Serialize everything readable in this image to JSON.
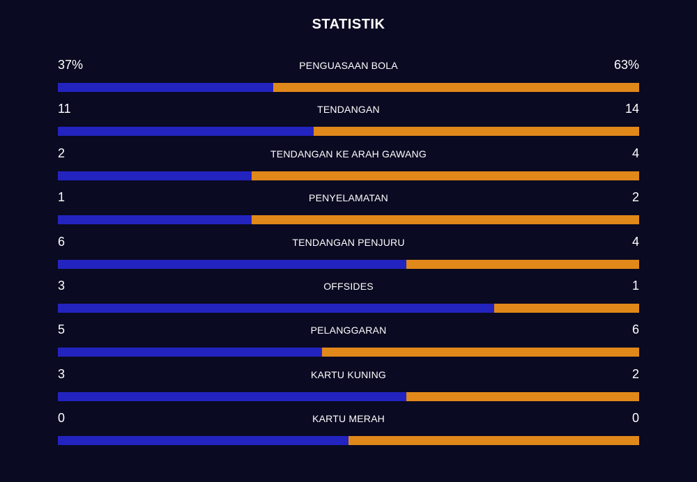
{
  "title": "STATISTIK",
  "colors": {
    "background": "#0a0a22",
    "home": "#2323c0",
    "away": "#e0881a"
  },
  "stats": [
    {
      "label": "PENGUASAAN BOLA",
      "home": "37%",
      "away": "63%",
      "home_share": 0.37
    },
    {
      "label": "TENDANGAN",
      "home": "11",
      "away": "14",
      "home_share": 0.44
    },
    {
      "label": "TENDANGAN KE ARAH GAWANG",
      "home": "2",
      "away": "4",
      "home_share": 0.3333
    },
    {
      "label": "PENYELAMATAN",
      "home": "1",
      "away": "2",
      "home_share": 0.3333
    },
    {
      "label": "TENDANGAN PENJURU",
      "home": "6",
      "away": "4",
      "home_share": 0.6
    },
    {
      "label": "OFFSIDES",
      "home": "3",
      "away": "1",
      "home_share": 0.75
    },
    {
      "label": "PELANGGARAN",
      "home": "5",
      "away": "6",
      "home_share": 0.4545
    },
    {
      "label": "KARTU KUNING",
      "home": "3",
      "away": "2",
      "home_share": 0.6
    },
    {
      "label": "KARTU MERAH",
      "home": "0",
      "away": "0",
      "home_share": 0.5
    }
  ]
}
